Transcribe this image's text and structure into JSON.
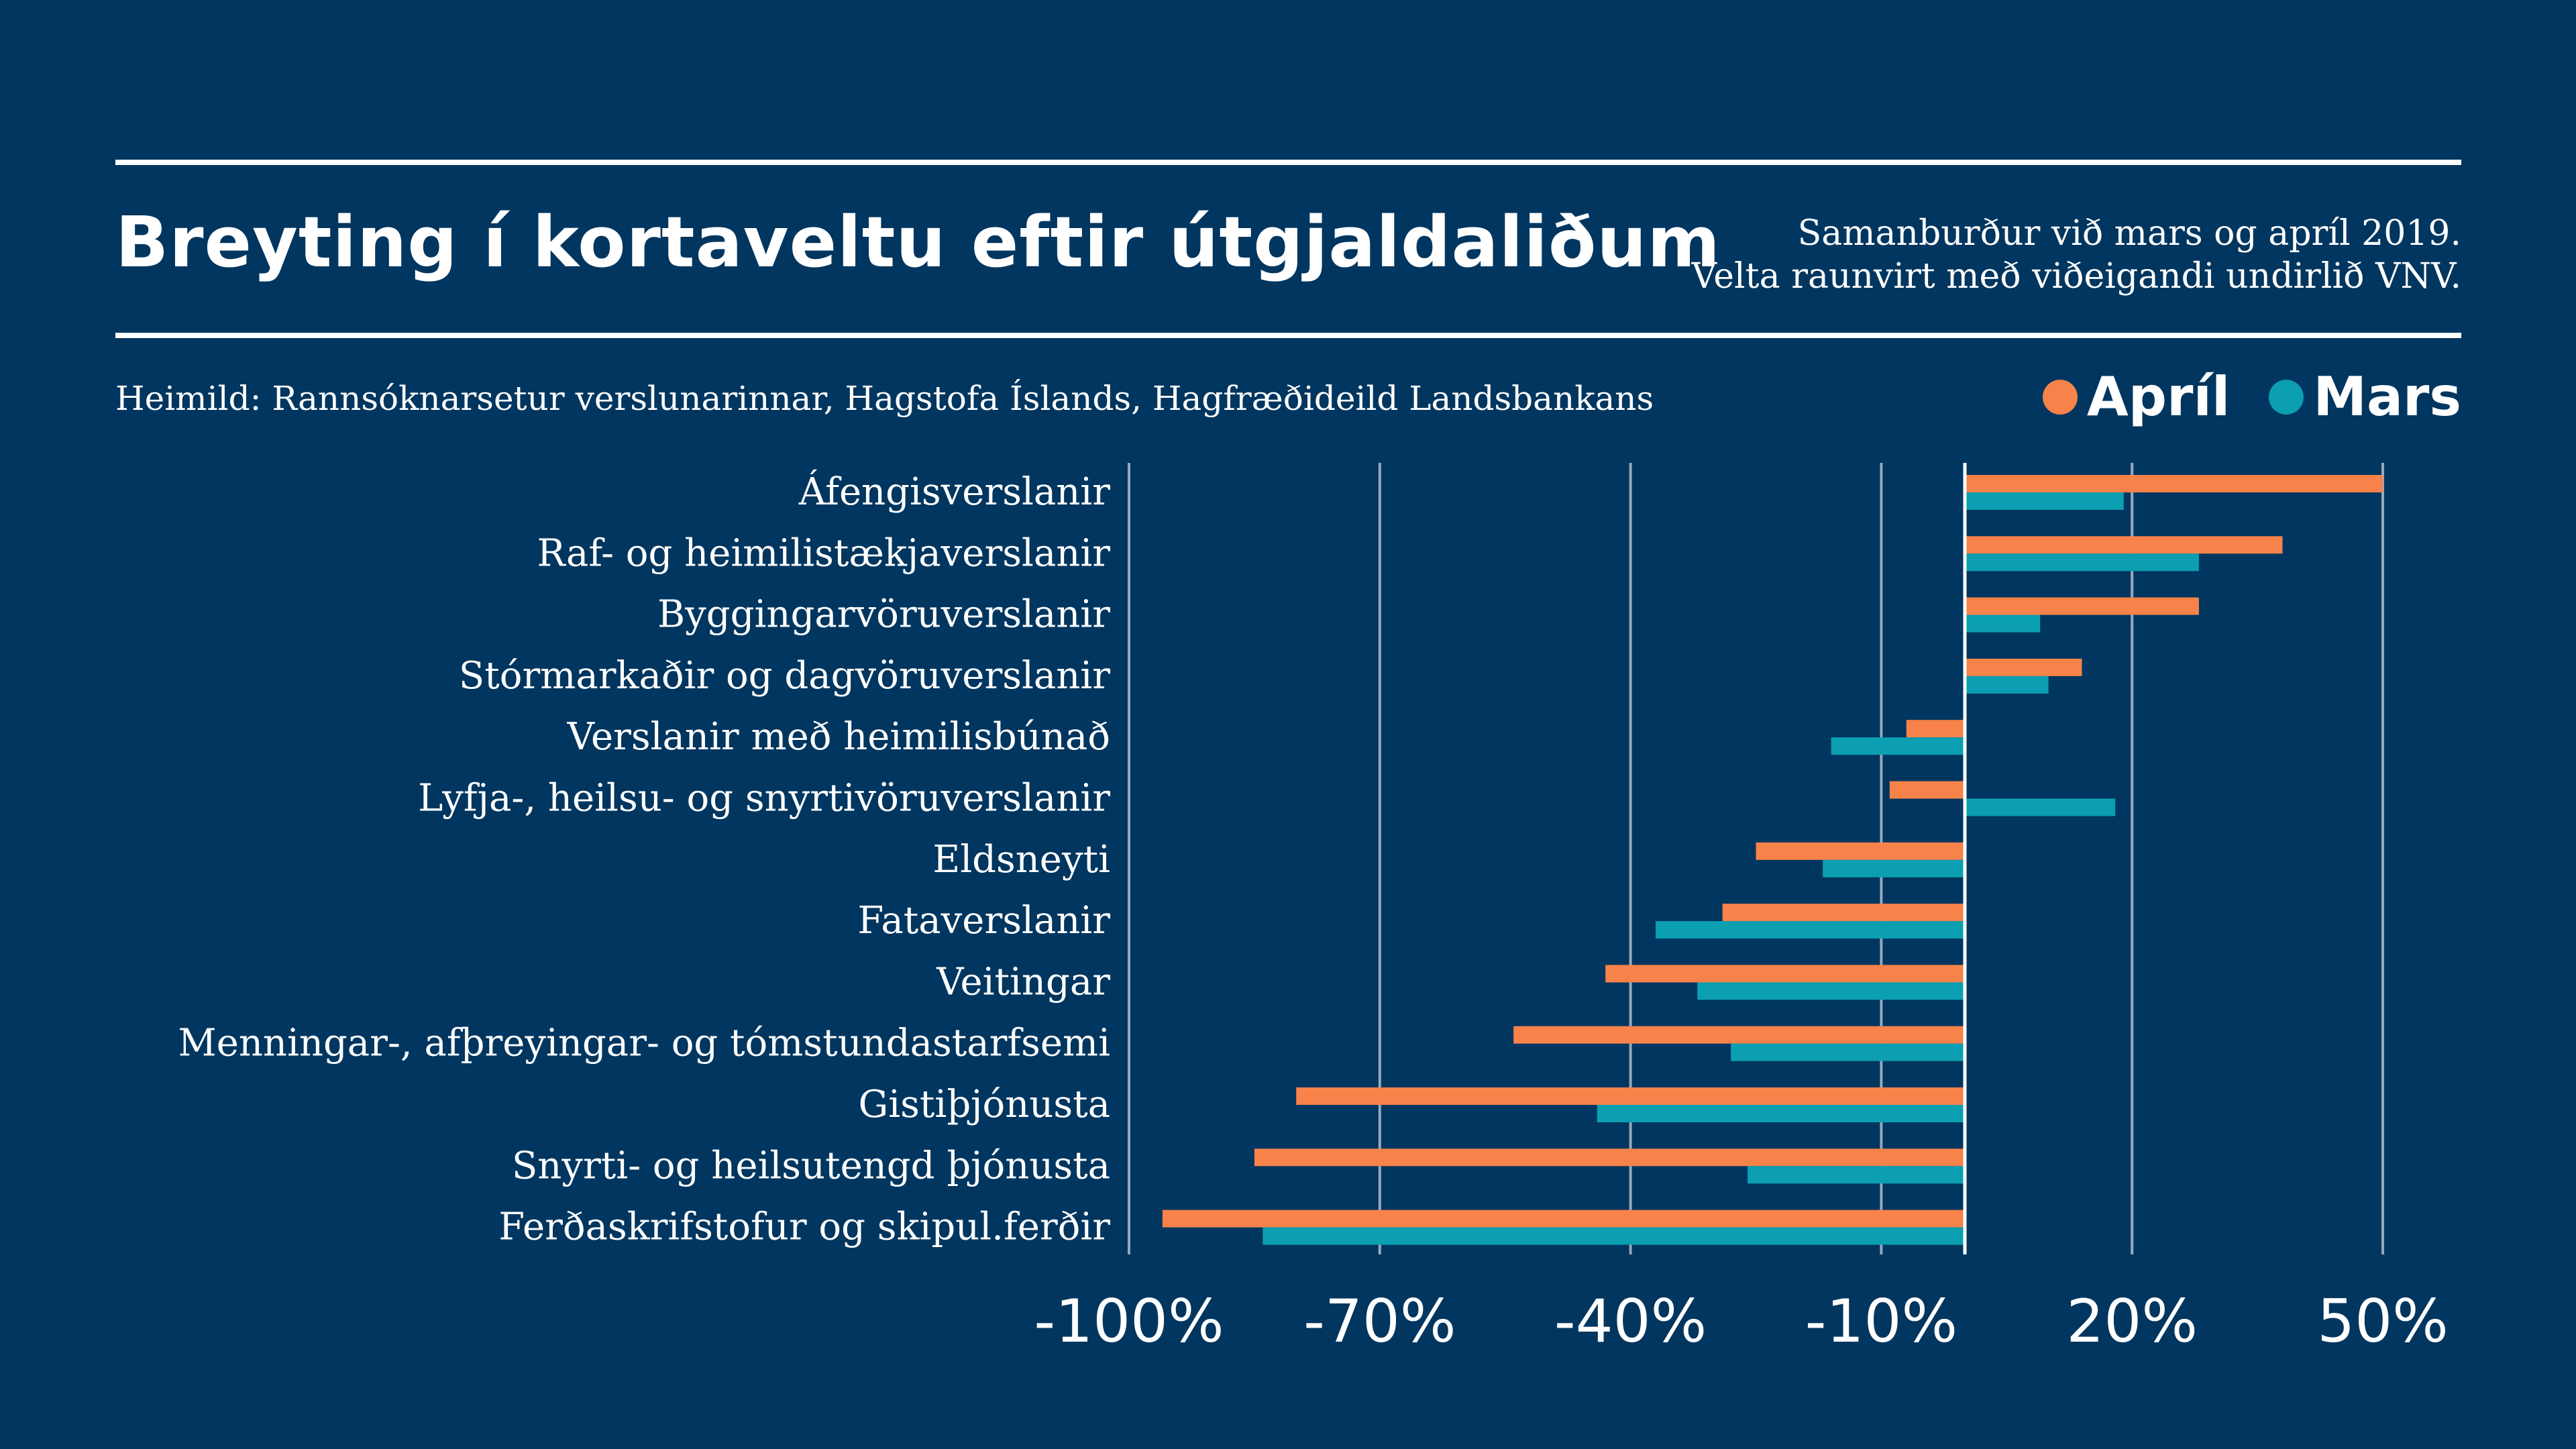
{
  "header": {
    "title": "Breyting í kortaveltu eftir útgjaldaliðum",
    "subtitle_line1": "Samanburður við mars og apríl 2019.",
    "subtitle_line2": "Velta raunvirt með viðeigandi undirlið VNV.",
    "source": "Heimild: Rannsóknarsetur verslunarinnar, Hagstofa Íslands, Hagfræðideild Landsbankans"
  },
  "colors": {
    "background": "#00365f",
    "april": "#f7834a",
    "mars": "#0b9fb1",
    "text": "#ffffff",
    "grid": "#9aa8b8"
  },
  "chart_data": {
    "type": "bar",
    "orientation": "horizontal",
    "categories": [
      "Áfengisverslanir",
      "Raf- og heimilistækjaverslanir",
      "Byggingarvöruverslanir",
      "Stórmarkaðir og dagvöruverslanir",
      "Verslanir með heimilisbúnað",
      "Lyfja-, heilsu- og snyrtivöruverslanir",
      "Eldsneyti",
      "Fataverslanir",
      "Veitingar",
      "Menningar-, afþreyingar- og tómstundastarfsemi",
      "Gistiþjónusta",
      "Snyrti- og heilsutengd þjónusta",
      "Ferðaskrifstofur og skipul.ferðir"
    ],
    "series": [
      {
        "name": "Apríl",
        "values": [
          50,
          38,
          28,
          14,
          -7,
          -9,
          -25,
          -29,
          -43,
          -54,
          -80,
          -85,
          -96
        ]
      },
      {
        "name": "Mars",
        "values": [
          19,
          28,
          9,
          10,
          -16,
          18,
          -17,
          -37,
          -32,
          -28,
          -44,
          -26,
          -84
        ]
      }
    ],
    "xlim": [
      -100,
      50
    ],
    "xticks": [
      -100,
      -70,
      -40,
      -10,
      20,
      50
    ],
    "xtick_labels": [
      "-100%",
      "-70%",
      "-40%",
      "-10%",
      "20%",
      "50%"
    ],
    "grid": true,
    "legend_position": "top-right"
  }
}
